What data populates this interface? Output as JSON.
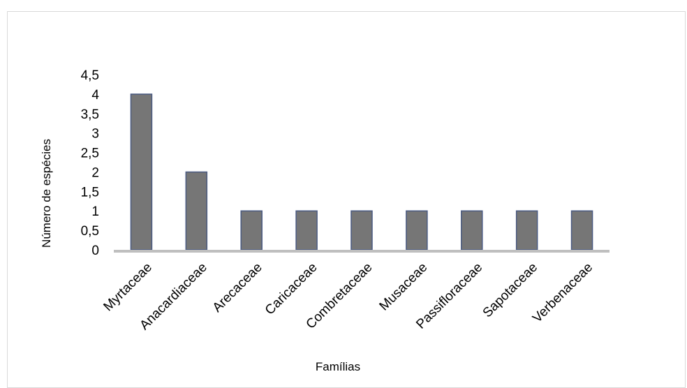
{
  "chart_data": {
    "type": "bar",
    "title": "",
    "xlabel": "Famílias",
    "ylabel": "Número de espécies",
    "categories": [
      "Myrtaceae",
      "Anacardiaceae",
      "Arecaceae",
      "Caricaceae",
      "Combretaceae",
      "Musaceae",
      "Passifloraceae",
      "Sapotaceae",
      "Verbenaceae"
    ],
    "values": [
      4,
      2,
      1,
      1,
      1,
      1,
      1,
      1,
      1
    ],
    "ylim": [
      0,
      4.5
    ],
    "yticks": [
      0,
      0.5,
      1,
      1.5,
      2,
      2.5,
      3,
      3.5,
      4,
      4.5
    ],
    "ytick_labels": [
      "0",
      "0,5",
      "1",
      "1,5",
      "2",
      "2,5",
      "3",
      "3,5",
      "4",
      "4,5"
    ],
    "grid": false,
    "legend": "none",
    "colors": {
      "bar": "#767676",
      "bar_edge": "#4a5a82",
      "axis": "#bfbfbf"
    }
  }
}
